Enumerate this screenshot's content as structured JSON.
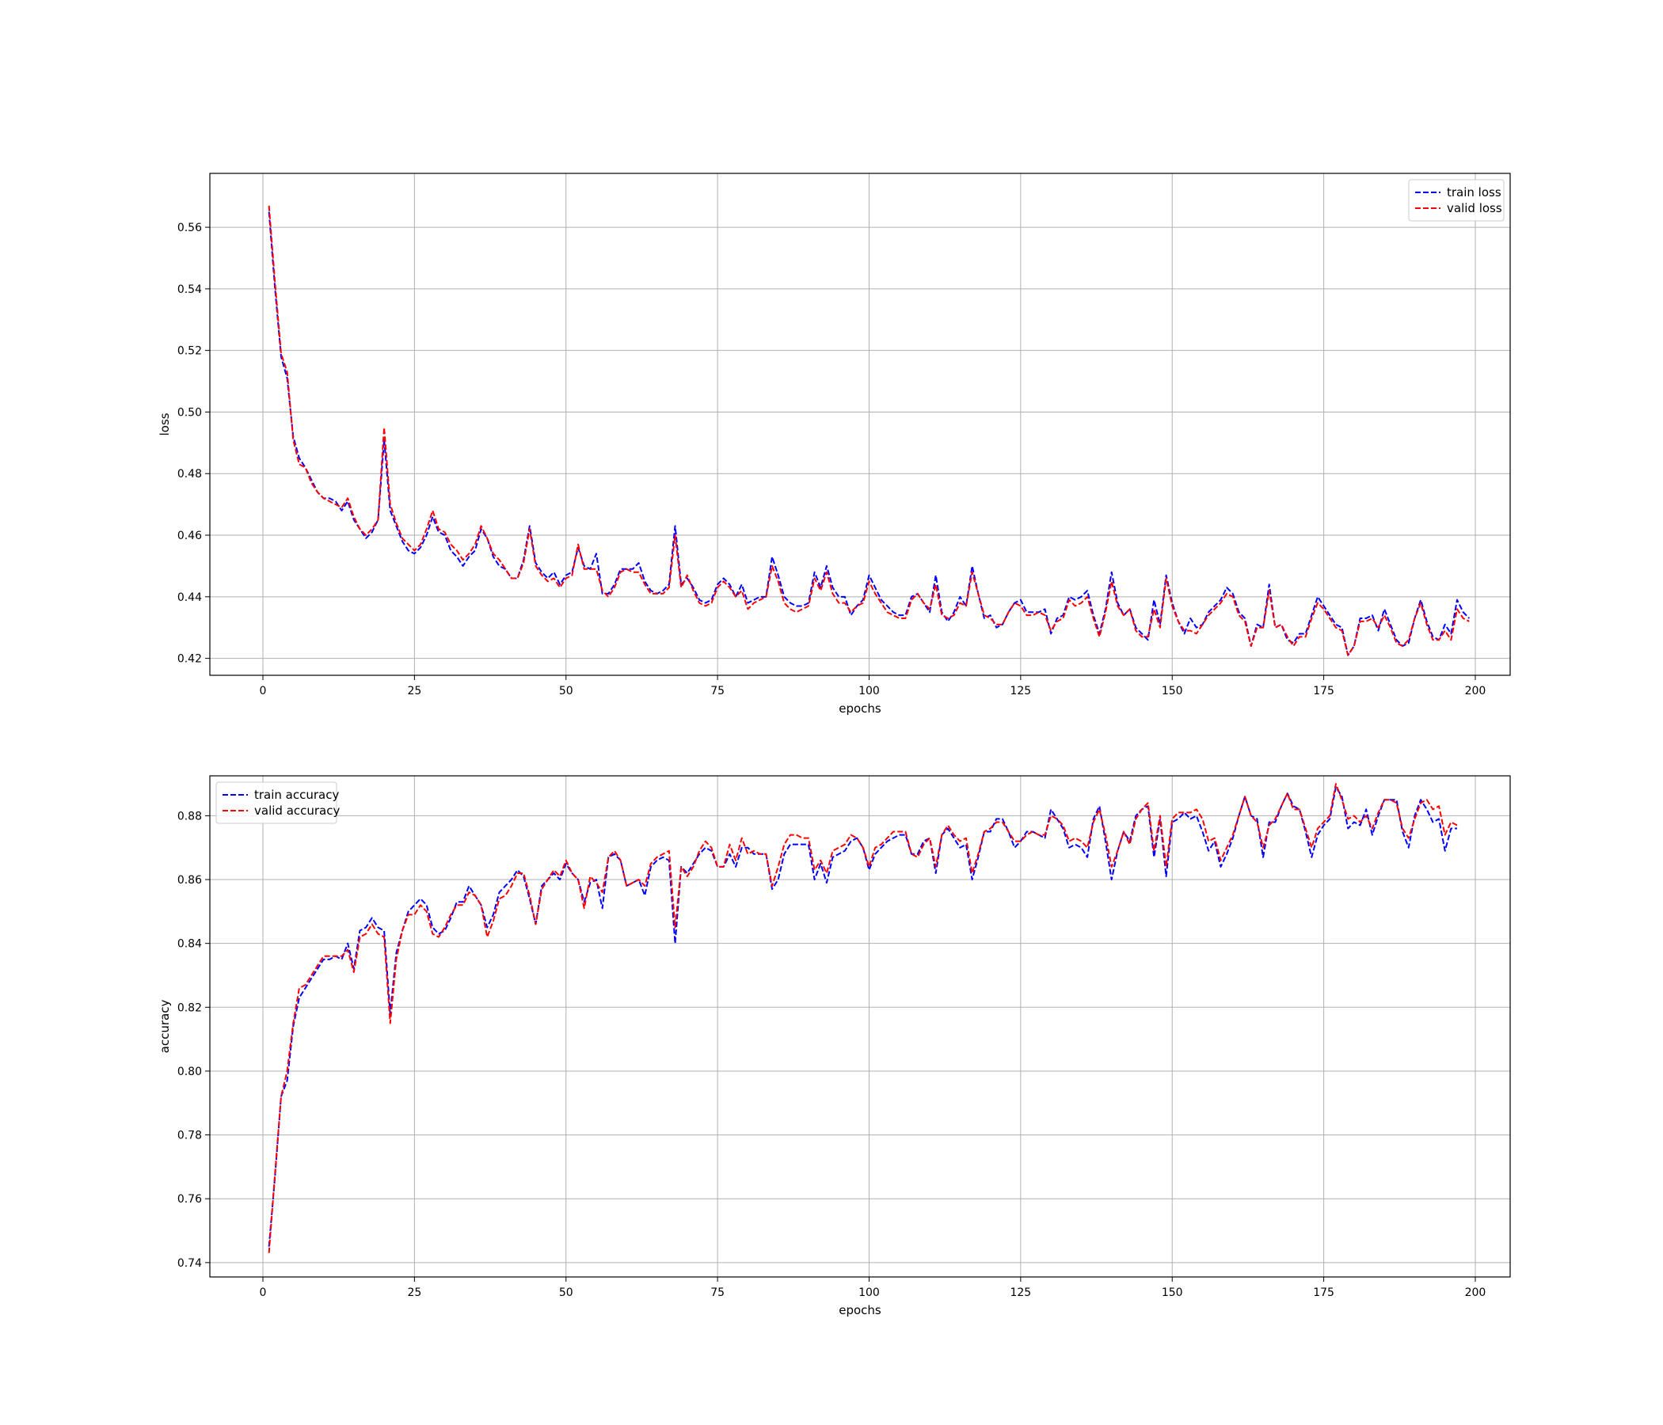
{
  "chart_data": [
    {
      "type": "line",
      "xlabel": "epochs",
      "ylabel": "loss",
      "xlim": [
        -8.75,
        205.75
      ],
      "ylim": [
        0.4145,
        0.5775
      ],
      "xticks": [
        0,
        25,
        50,
        75,
        100,
        125,
        150,
        175,
        200
      ],
      "yticks": [
        0.42,
        0.44,
        0.46,
        0.48,
        0.5,
        0.52,
        0.54,
        0.56
      ],
      "ytick_labels": [
        "0.42",
        "0.44",
        "0.46",
        "0.48",
        "0.50",
        "0.52",
        "0.54",
        "0.56"
      ],
      "grid": true,
      "legend_position": "upper right",
      "series": [
        {
          "name": "train loss",
          "color": "#0000ff",
          "style": "dashed",
          "x_start": 1,
          "values": [
            0.565,
            0.54,
            0.518,
            0.511,
            0.492,
            0.485,
            0.482,
            0.478,
            0.474,
            0.472,
            0.472,
            0.471,
            0.468,
            0.471,
            0.465,
            0.462,
            0.459,
            0.461,
            0.465,
            0.491,
            0.468,
            0.463,
            0.458,
            0.455,
            0.454,
            0.456,
            0.46,
            0.466,
            0.461,
            0.46,
            0.455,
            0.453,
            0.45,
            0.453,
            0.455,
            0.462,
            0.459,
            0.453,
            0.45,
            0.449,
            0.446,
            0.446,
            0.452,
            0.463,
            0.451,
            0.448,
            0.446,
            0.448,
            0.444,
            0.447,
            0.448,
            0.456,
            0.45,
            0.449,
            0.454,
            0.441,
            0.441,
            0.444,
            0.449,
            0.449,
            0.449,
            0.451,
            0.445,
            0.442,
            0.441,
            0.442,
            0.444,
            0.463,
            0.444,
            0.446,
            0.443,
            0.439,
            0.438,
            0.439,
            0.444,
            0.446,
            0.444,
            0.44,
            0.444,
            0.438,
            0.439,
            0.44,
            0.44,
            0.453,
            0.447,
            0.44,
            0.438,
            0.437,
            0.437,
            0.438,
            0.448,
            0.443,
            0.45,
            0.443,
            0.44,
            0.44,
            0.434,
            0.437,
            0.439,
            0.447,
            0.443,
            0.439,
            0.437,
            0.435,
            0.434,
            0.434,
            0.44,
            0.441,
            0.438,
            0.435,
            0.447,
            0.435,
            0.432,
            0.435,
            0.44,
            0.437,
            0.45,
            0.441,
            0.433,
            0.434,
            0.43,
            0.431,
            0.435,
            0.438,
            0.439,
            0.435,
            0.435,
            0.435,
            0.436,
            0.428,
            0.433,
            0.434,
            0.44,
            0.439,
            0.44,
            0.442,
            0.434,
            0.428,
            0.436,
            0.448,
            0.438,
            0.434,
            0.436,
            0.43,
            0.428,
            0.426,
            0.439,
            0.431,
            0.447,
            0.438,
            0.432,
            0.428,
            0.433,
            0.43,
            0.431,
            0.435,
            0.437,
            0.439,
            0.443,
            0.441,
            0.435,
            0.433,
            0.424,
            0.431,
            0.43,
            0.444,
            0.43,
            0.431,
            0.426,
            0.425,
            0.428,
            0.428,
            0.434,
            0.44,
            0.437,
            0.434,
            0.431,
            0.43,
            0.421,
            0.424,
            0.433,
            0.433,
            0.434,
            0.429,
            0.436,
            0.431,
            0.426,
            0.424,
            0.425,
            0.433,
            0.439,
            0.432,
            0.427,
            0.426,
            0.431,
            0.428,
            0.439,
            0.435,
            0.433
          ]
        },
        {
          "name": "valid loss",
          "color": "#ff0000",
          "style": "dashed",
          "x_start": 1,
          "values": [
            0.567,
            0.542,
            0.519,
            0.513,
            0.491,
            0.483,
            0.482,
            0.477,
            0.474,
            0.472,
            0.471,
            0.47,
            0.469,
            0.472,
            0.466,
            0.462,
            0.46,
            0.462,
            0.465,
            0.495,
            0.47,
            0.464,
            0.459,
            0.457,
            0.455,
            0.457,
            0.462,
            0.468,
            0.462,
            0.461,
            0.457,
            0.455,
            0.452,
            0.454,
            0.457,
            0.463,
            0.459,
            0.454,
            0.452,
            0.449,
            0.446,
            0.446,
            0.451,
            0.462,
            0.45,
            0.447,
            0.445,
            0.446,
            0.443,
            0.446,
            0.447,
            0.457,
            0.449,
            0.449,
            0.449,
            0.442,
            0.44,
            0.443,
            0.448,
            0.449,
            0.448,
            0.448,
            0.444,
            0.441,
            0.441,
            0.441,
            0.443,
            0.46,
            0.443,
            0.447,
            0.442,
            0.438,
            0.437,
            0.438,
            0.443,
            0.445,
            0.443,
            0.44,
            0.442,
            0.436,
            0.438,
            0.439,
            0.44,
            0.45,
            0.445,
            0.438,
            0.436,
            0.435,
            0.436,
            0.437,
            0.446,
            0.442,
            0.448,
            0.441,
            0.438,
            0.438,
            0.435,
            0.437,
            0.438,
            0.445,
            0.441,
            0.438,
            0.435,
            0.434,
            0.433,
            0.433,
            0.439,
            0.441,
            0.438,
            0.436,
            0.444,
            0.434,
            0.433,
            0.434,
            0.438,
            0.437,
            0.448,
            0.441,
            0.434,
            0.433,
            0.431,
            0.431,
            0.435,
            0.438,
            0.437,
            0.434,
            0.434,
            0.435,
            0.434,
            0.429,
            0.432,
            0.433,
            0.439,
            0.437,
            0.438,
            0.44,
            0.433,
            0.427,
            0.435,
            0.445,
            0.437,
            0.434,
            0.436,
            0.429,
            0.427,
            0.427,
            0.436,
            0.43,
            0.446,
            0.437,
            0.432,
            0.429,
            0.429,
            0.428,
            0.431,
            0.434,
            0.436,
            0.438,
            0.441,
            0.44,
            0.434,
            0.432,
            0.424,
            0.43,
            0.43,
            0.442,
            0.43,
            0.431,
            0.427,
            0.424,
            0.427,
            0.427,
            0.433,
            0.438,
            0.436,
            0.433,
            0.43,
            0.429,
            0.421,
            0.424,
            0.432,
            0.432,
            0.433,
            0.43,
            0.434,
            0.43,
            0.425,
            0.424,
            0.426,
            0.433,
            0.438,
            0.431,
            0.426,
            0.426,
            0.429,
            0.426,
            0.436,
            0.433,
            0.432
          ]
        }
      ]
    },
    {
      "type": "line",
      "xlabel": "epochs",
      "ylabel": "accuracy",
      "xlim": [
        -8.75,
        205.75
      ],
      "ylim": [
        0.7355,
        0.8925
      ],
      "xticks": [
        0,
        25,
        50,
        75,
        100,
        125,
        150,
        175,
        200
      ],
      "yticks": [
        0.74,
        0.76,
        0.78,
        0.8,
        0.82,
        0.84,
        0.86,
        0.88
      ],
      "ytick_labels": [
        "0.74",
        "0.76",
        "0.78",
        "0.80",
        "0.82",
        "0.84",
        "0.86",
        "0.88"
      ],
      "grid": true,
      "legend_position": "upper left",
      "series": [
        {
          "name": "train accuracy",
          "color": "#0000ff",
          "style": "dashed",
          "x_start": 1,
          "values": [
            0.745,
            0.767,
            0.792,
            0.797,
            0.814,
            0.823,
            0.826,
            0.829,
            0.832,
            0.835,
            0.835,
            0.836,
            0.835,
            0.84,
            0.832,
            0.844,
            0.845,
            0.848,
            0.845,
            0.844,
            0.818,
            0.837,
            0.844,
            0.85,
            0.852,
            0.854,
            0.852,
            0.845,
            0.843,
            0.844,
            0.848,
            0.853,
            0.853,
            0.858,
            0.855,
            0.852,
            0.845,
            0.849,
            0.856,
            0.858,
            0.86,
            0.863,
            0.861,
            0.854,
            0.846,
            0.858,
            0.86,
            0.862,
            0.86,
            0.865,
            0.862,
            0.86,
            0.853,
            0.859,
            0.86,
            0.851,
            0.867,
            0.868,
            0.866,
            0.858,
            0.859,
            0.86,
            0.855,
            0.864,
            0.866,
            0.867,
            0.866,
            0.84,
            0.864,
            0.862,
            0.865,
            0.868,
            0.87,
            0.869,
            0.864,
            0.864,
            0.868,
            0.864,
            0.87,
            0.87,
            0.868,
            0.868,
            0.868,
            0.857,
            0.86,
            0.868,
            0.871,
            0.871,
            0.871,
            0.871,
            0.86,
            0.865,
            0.859,
            0.867,
            0.868,
            0.869,
            0.872,
            0.873,
            0.87,
            0.863,
            0.868,
            0.87,
            0.872,
            0.873,
            0.874,
            0.874,
            0.868,
            0.868,
            0.872,
            0.873,
            0.862,
            0.874,
            0.876,
            0.873,
            0.87,
            0.871,
            0.86,
            0.867,
            0.875,
            0.875,
            0.879,
            0.879,
            0.875,
            0.87,
            0.872,
            0.875,
            0.875,
            0.874,
            0.873,
            0.882,
            0.879,
            0.876,
            0.87,
            0.871,
            0.87,
            0.867,
            0.879,
            0.883,
            0.872,
            0.86,
            0.869,
            0.875,
            0.872,
            0.88,
            0.882,
            0.883,
            0.867,
            0.879,
            0.861,
            0.878,
            0.879,
            0.881,
            0.879,
            0.88,
            0.875,
            0.869,
            0.872,
            0.864,
            0.868,
            0.873,
            0.88,
            0.886,
            0.88,
            0.879,
            0.867,
            0.878,
            0.878,
            0.883,
            0.887,
            0.883,
            0.882,
            0.875,
            0.867,
            0.874,
            0.877,
            0.879,
            0.889,
            0.886,
            0.876,
            0.878,
            0.877,
            0.882,
            0.874,
            0.88,
            0.885,
            0.885,
            0.885,
            0.875,
            0.87,
            0.88,
            0.885,
            0.882,
            0.878,
            0.879,
            0.869,
            0.876,
            0.876
          ]
        },
        {
          "name": "valid accuracy",
          "color": "#ff0000",
          "style": "dashed",
          "x_start": 1,
          "values": [
            0.743,
            0.768,
            0.792,
            0.8,
            0.815,
            0.826,
            0.827,
            0.83,
            0.833,
            0.836,
            0.836,
            0.836,
            0.836,
            0.838,
            0.831,
            0.842,
            0.843,
            0.846,
            0.843,
            0.842,
            0.815,
            0.835,
            0.844,
            0.849,
            0.849,
            0.852,
            0.85,
            0.843,
            0.842,
            0.845,
            0.849,
            0.852,
            0.852,
            0.856,
            0.855,
            0.852,
            0.842,
            0.847,
            0.854,
            0.855,
            0.858,
            0.862,
            0.862,
            0.855,
            0.846,
            0.857,
            0.86,
            0.863,
            0.861,
            0.866,
            0.862,
            0.86,
            0.851,
            0.861,
            0.859,
            0.856,
            0.867,
            0.869,
            0.866,
            0.858,
            0.859,
            0.86,
            0.858,
            0.865,
            0.867,
            0.868,
            0.869,
            0.845,
            0.864,
            0.861,
            0.864,
            0.869,
            0.872,
            0.87,
            0.864,
            0.864,
            0.871,
            0.866,
            0.873,
            0.868,
            0.869,
            0.868,
            0.868,
            0.858,
            0.864,
            0.871,
            0.874,
            0.874,
            0.873,
            0.873,
            0.863,
            0.866,
            0.862,
            0.869,
            0.87,
            0.871,
            0.874,
            0.873,
            0.87,
            0.864,
            0.87,
            0.871,
            0.873,
            0.875,
            0.875,
            0.875,
            0.868,
            0.867,
            0.871,
            0.873,
            0.864,
            0.874,
            0.877,
            0.874,
            0.872,
            0.873,
            0.862,
            0.868,
            0.875,
            0.876,
            0.878,
            0.878,
            0.875,
            0.872,
            0.872,
            0.874,
            0.875,
            0.874,
            0.874,
            0.88,
            0.879,
            0.877,
            0.872,
            0.873,
            0.872,
            0.87,
            0.878,
            0.882,
            0.874,
            0.864,
            0.869,
            0.875,
            0.871,
            0.879,
            0.882,
            0.884,
            0.869,
            0.88,
            0.864,
            0.879,
            0.881,
            0.881,
            0.881,
            0.882,
            0.879,
            0.872,
            0.873,
            0.866,
            0.87,
            0.874,
            0.88,
            0.886,
            0.88,
            0.878,
            0.87,
            0.877,
            0.879,
            0.883,
            0.887,
            0.882,
            0.882,
            0.876,
            0.87,
            0.876,
            0.878,
            0.88,
            0.89,
            0.885,
            0.879,
            0.88,
            0.878,
            0.88,
            0.876,
            0.881,
            0.885,
            0.885,
            0.884,
            0.876,
            0.873,
            0.879,
            0.884,
            0.885,
            0.882,
            0.883,
            0.874,
            0.878,
            0.877
          ]
        }
      ]
    }
  ]
}
